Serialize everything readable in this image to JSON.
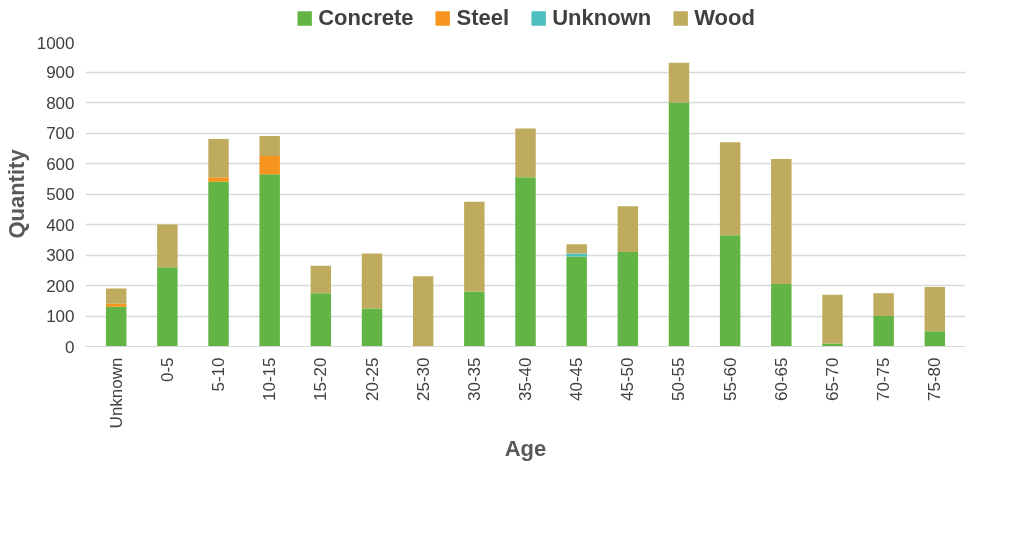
{
  "chart_data": {
    "type": "bar",
    "stacked": true,
    "xlabel": "Age",
    "ylabel": "Quantity",
    "categories": [
      "Unknown",
      "0-5",
      "5-10",
      "10-15",
      "15-20",
      "20-25",
      "25-30",
      "30-35",
      "35-40",
      "40-45",
      "45-50",
      "50-55",
      "55-60",
      "60-65",
      "65-70",
      "70-75",
      "75-80"
    ],
    "series": [
      {
        "name": "Concrete",
        "color": "#62b544",
        "values": [
          130,
          260,
          540,
          565,
          175,
          125,
          0,
          180,
          555,
          295,
          310,
          800,
          365,
          205,
          10,
          100,
          50
        ]
      },
      {
        "name": "Steel",
        "color": "#f7941d",
        "values": [
          10,
          0,
          15,
          60,
          0,
          0,
          0,
          0,
          0,
          0,
          0,
          0,
          0,
          0,
          0,
          0,
          0
        ]
      },
      {
        "name": "Unknown",
        "color": "#4dbfbf",
        "values": [
          0,
          0,
          0,
          0,
          0,
          0,
          0,
          0,
          0,
          10,
          0,
          0,
          0,
          0,
          0,
          0,
          0
        ]
      },
      {
        "name": "Wood",
        "color": "#bfab5e",
        "values": [
          50,
          140,
          125,
          65,
          90,
          180,
          230,
          295,
          160,
          30,
          150,
          130,
          305,
          410,
          160,
          75,
          145
        ]
      }
    ],
    "ylim": [
      0,
      1000
    ],
    "yticks": [
      0,
      100,
      200,
      300,
      400,
      500,
      600,
      700,
      800,
      900,
      1000
    ],
    "grid": "y",
    "legend": "top"
  }
}
